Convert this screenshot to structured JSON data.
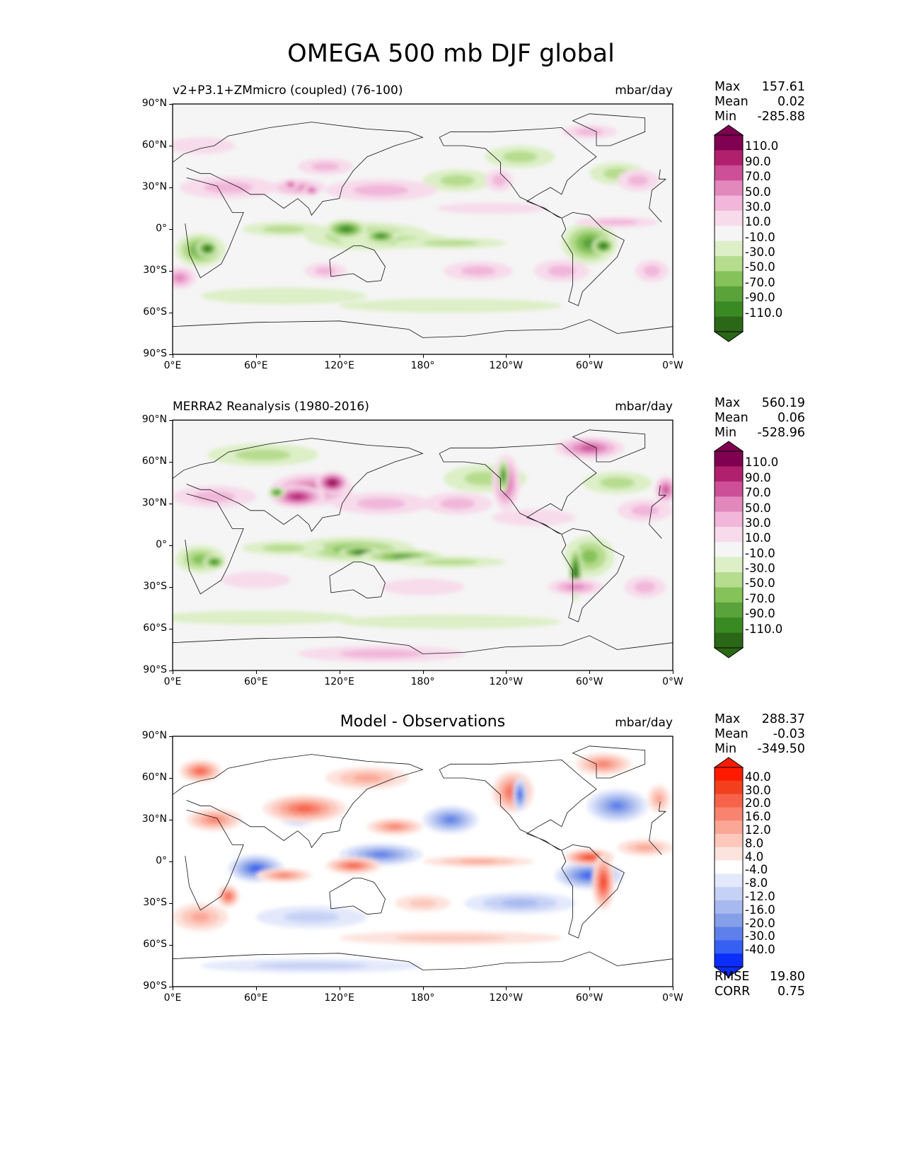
{
  "figure": {
    "title": "OMEGA 500 mb DJF global"
  },
  "x_ticks": [
    "0°E",
    "60°E",
    "120°E",
    "180°",
    "120°W",
    "60°W",
    "0°W"
  ],
  "y_ticks": [
    "90°N",
    "60°N",
    "30°N",
    "0°",
    "30°S",
    "60°S",
    "90°S"
  ],
  "panels": [
    {
      "title": "v2+P3.1+ZMmicro (coupled) (76-100)",
      "units": "mbar/day",
      "stats": [
        {
          "label": "Max",
          "value": "157.61"
        },
        {
          "label": "Mean",
          "value": "0.02"
        },
        {
          "label": "Min",
          "value": "-285.88"
        }
      ],
      "colorbar_labels": [
        "110.0",
        "90.0",
        "70.0",
        "50.0",
        "30.0",
        "10.0",
        "-10.0",
        "-30.0",
        "-50.0",
        "-70.0",
        "-90.0",
        "-110.0"
      ]
    },
    {
      "title": "MERRA2 Reanalysis (1980-2016)",
      "units": "mbar/day",
      "stats": [
        {
          "label": "Max",
          "value": "560.19"
        },
        {
          "label": "Mean",
          "value": "0.06"
        },
        {
          "label": "Min",
          "value": "-528.96"
        }
      ],
      "colorbar_labels": [
        "110.0",
        "90.0",
        "70.0",
        "50.0",
        "30.0",
        "10.0",
        "-10.0",
        "-30.0",
        "-50.0",
        "-70.0",
        "-90.0",
        "-110.0"
      ]
    },
    {
      "title": "Model - Observations",
      "units": "mbar/day",
      "stats": [
        {
          "label": "Max",
          "value": "288.37"
        },
        {
          "label": "Mean",
          "value": "-0.03"
        },
        {
          "label": "Min",
          "value": "-349.50"
        }
      ],
      "colorbar_labels": [
        "40.0",
        "30.0",
        "20.0",
        "16.0",
        "12.0",
        "8.0",
        "4.0",
        "-4.0",
        "-8.0",
        "-12.0",
        "-16.0",
        "-20.0",
        "-30.0",
        "-40.0"
      ],
      "footer_stats": [
        {
          "label": "RMSE",
          "value": "19.80"
        },
        {
          "label": "CORR",
          "value": "0.75"
        }
      ]
    }
  ],
  "colors": {
    "pg_scale": [
      "#2a6716",
      "#3a8a24",
      "#5aa23a",
      "#86c25a",
      "#b6dc8e",
      "#dcefc6",
      "#f5f5f5",
      "#f7dbeb",
      "#f1b6d9",
      "#e288bd",
      "#cc4f98",
      "#b0206d",
      "#7f0050"
    ],
    "diff_scale": [
      "#0b2dfe",
      "#3560f2",
      "#5d80ea",
      "#859fe8",
      "#a7b9ee",
      "#c6d2f5",
      "#e3e9fb",
      "#ffffff",
      "#fde3dd",
      "#fcc8bb",
      "#faa796",
      "#f8836f",
      "#f6634a",
      "#f2401f",
      "#ff1a00"
    ]
  },
  "chart_data": [
    {
      "type": "heatmap",
      "title": "v2+P3.1+ZMmicro (coupled) (76-100)",
      "variable": "OMEGA 500 mb",
      "season": "DJF",
      "units": "mbar/day",
      "x_range": [
        0,
        360
      ],
      "y_range": [
        -90,
        90
      ],
      "xtick_values": [
        0,
        60,
        120,
        180,
        240,
        300,
        360
      ],
      "ytick_values": [
        90,
        60,
        30,
        0,
        -30,
        -60,
        -90
      ],
      "levels": [
        -110,
        -90,
        -70,
        -50,
        -30,
        -10,
        10,
        30,
        50,
        70,
        90,
        110
      ],
      "max": 157.61,
      "mean": 0.02,
      "min": -285.88
    },
    {
      "type": "heatmap",
      "title": "MERRA2 Reanalysis (1980-2016)",
      "variable": "OMEGA 500 mb",
      "season": "DJF",
      "units": "mbar/day",
      "x_range": [
        0,
        360
      ],
      "y_range": [
        -90,
        90
      ],
      "xtick_values": [
        0,
        60,
        120,
        180,
        240,
        300,
        360
      ],
      "ytick_values": [
        90,
        60,
        30,
        0,
        -30,
        -60,
        -90
      ],
      "levels": [
        -110,
        -90,
        -70,
        -50,
        -30,
        -10,
        10,
        30,
        50,
        70,
        90,
        110
      ],
      "max": 560.19,
      "mean": 0.06,
      "min": -528.96
    },
    {
      "type": "heatmap",
      "title": "Model - Observations",
      "variable": "OMEGA 500 mb",
      "season": "DJF",
      "units": "mbar/day",
      "x_range": [
        0,
        360
      ],
      "y_range": [
        -90,
        90
      ],
      "xtick_values": [
        0,
        60,
        120,
        180,
        240,
        300,
        360
      ],
      "ytick_values": [
        90,
        60,
        30,
        0,
        -30,
        -60,
        -90
      ],
      "levels": [
        -40,
        -30,
        -20,
        -16,
        -12,
        -8,
        -4,
        4,
        8,
        12,
        16,
        20,
        30,
        40
      ],
      "max": 288.37,
      "mean": -0.03,
      "min": -349.5,
      "rmse": 19.8,
      "corr": 0.75
    }
  ]
}
